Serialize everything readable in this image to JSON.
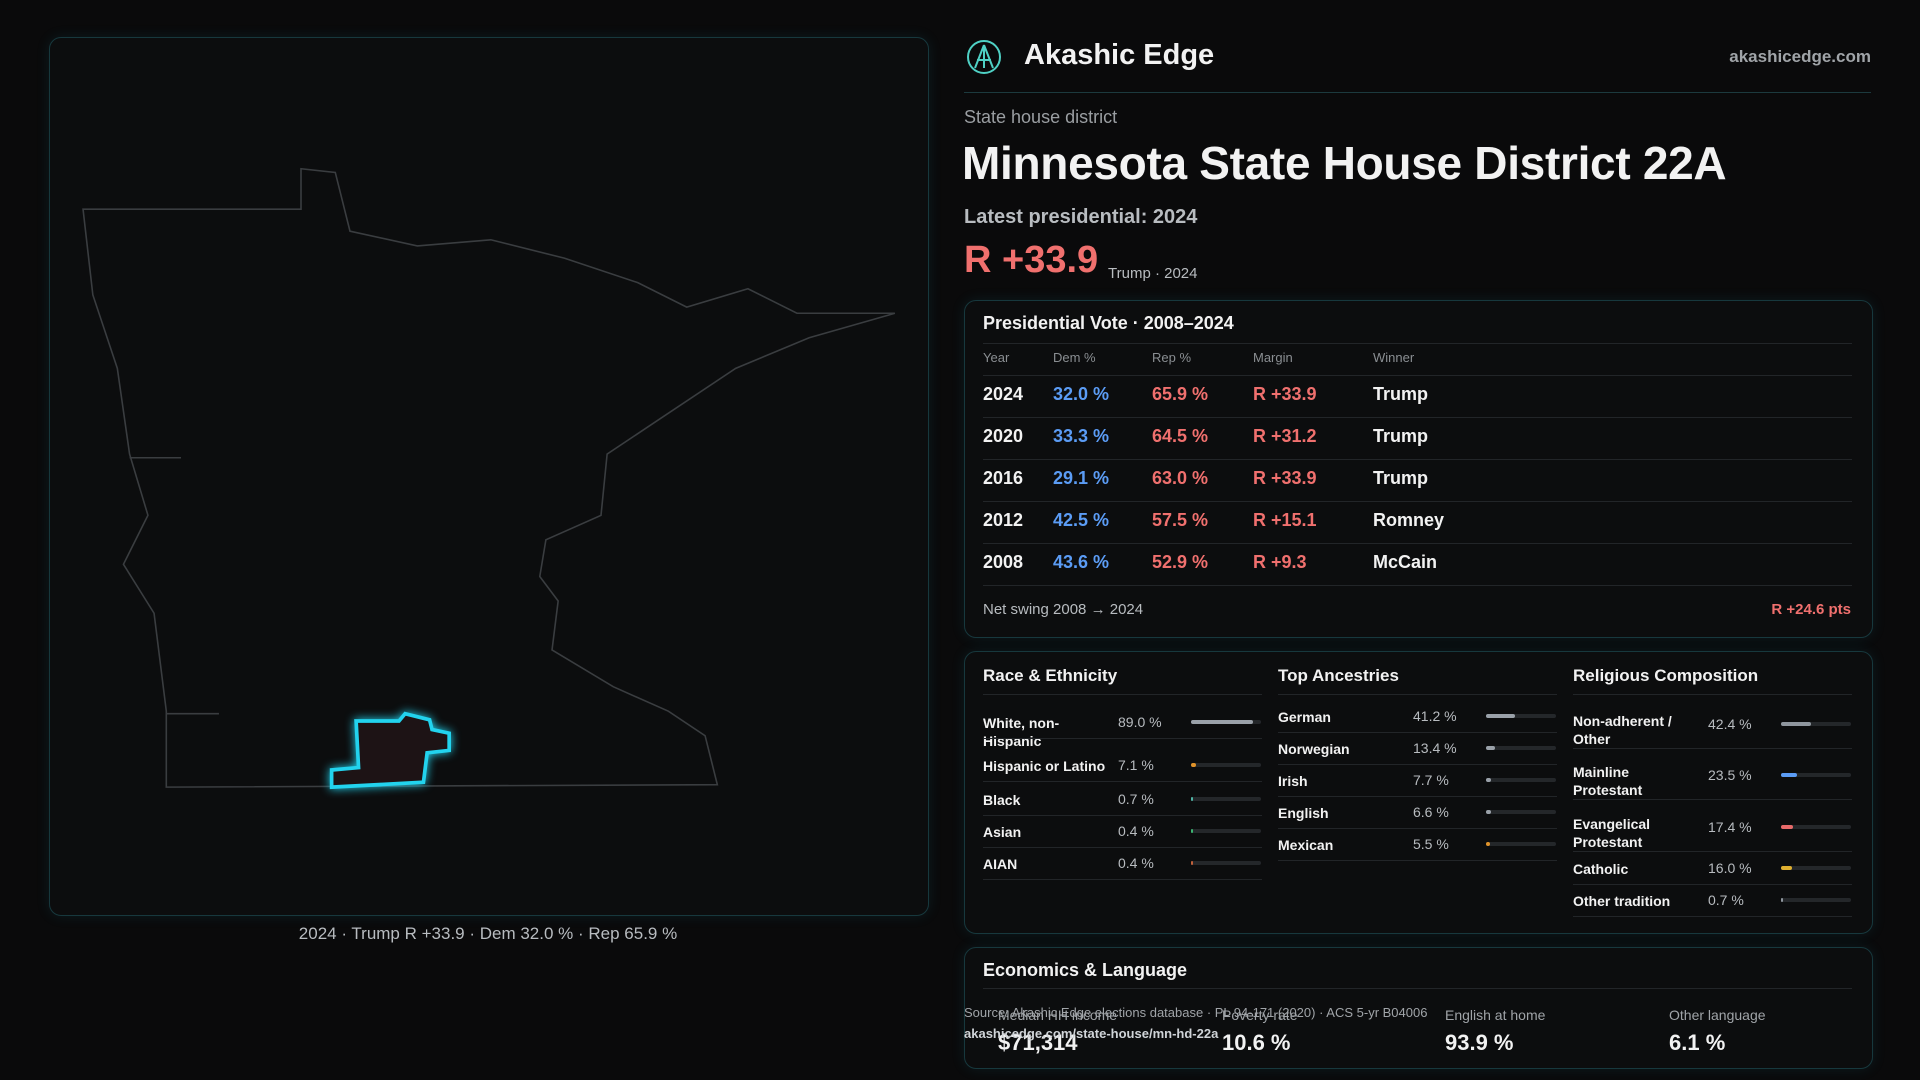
{
  "header": {
    "brand": "Akashic Edge",
    "url": "akashicedge.com"
  },
  "map": {
    "caption": "2024 · Trump R +33.9 · Dem 32.0 % · Rep 65.9 %"
  },
  "district": {
    "kicker": "State house district",
    "title": "Minnesota State House District 22A",
    "latest": "Latest presidential: 2024",
    "margin": "R +33.9",
    "margin_note": "Trump · 2024"
  },
  "presidential": {
    "title": "Presidential Vote · 2008–2024",
    "columns": [
      "Year",
      "Dem %",
      "Rep %",
      "Margin",
      "Winner"
    ],
    "rows": [
      [
        "2024",
        "32.0 %",
        "65.9 %",
        "R +33.9",
        "Trump"
      ],
      [
        "2020",
        "33.3 %",
        "64.5 %",
        "R +31.2",
        "Trump"
      ],
      [
        "2016",
        "29.1 %",
        "63.0 %",
        "R +33.9",
        "Trump"
      ],
      [
        "2012",
        "42.5 %",
        "57.5 %",
        "R +15.1",
        "Romney"
      ],
      [
        "2008",
        "43.6 %",
        "52.9 %",
        "R +9.3",
        "McCain"
      ]
    ],
    "swing_label": "Net swing 2008 → 2024",
    "swing_value": "R +24.6 pts"
  },
  "race": {
    "title": "Race & Ethnicity",
    "rows": [
      {
        "label": "White, non-Hispanic",
        "value": 89.0,
        "value_label": "89.0 %",
        "color": "#9aa1a9"
      },
      {
        "label": "Hispanic or Latino",
        "value": 7.1,
        "value_label": "7.1 %",
        "color": "#e0932a"
      },
      {
        "label": "Black",
        "value": 0.7,
        "value_label": "0.7 %",
        "color": "#4fb3a5"
      },
      {
        "label": "Asian",
        "value": 0.4,
        "value_label": "0.4 %",
        "color": "#3cb371"
      },
      {
        "label": "AIAN",
        "value": 0.4,
        "value_label": "0.4 %",
        "color": "#c0603a"
      }
    ]
  },
  "ancestry": {
    "title": "Top Ancestries",
    "rows": [
      {
        "label": "German",
        "value": 41.2,
        "value_label": "41.2 %",
        "color": "#9aa1a9"
      },
      {
        "label": "Norwegian",
        "value": 13.4,
        "value_label": "13.4 %",
        "color": "#9aa1a9"
      },
      {
        "label": "Irish",
        "value": 7.7,
        "value_label": "7.7 %",
        "color": "#9aa1a9"
      },
      {
        "label": "English",
        "value": 6.6,
        "value_label": "6.6 %",
        "color": "#9aa1a9"
      },
      {
        "label": "Mexican",
        "value": 5.5,
        "value_label": "5.5 %",
        "color": "#e0932a"
      }
    ]
  },
  "religion": {
    "title": "Religious Composition",
    "rows": [
      {
        "label": "Non-adherent / Other",
        "value": 42.4,
        "value_label": "42.4 %",
        "color": "#8f969e"
      },
      {
        "label": "Mainline Protestant",
        "value": 23.5,
        "value_label": "23.5 %",
        "color": "#5b9cf5"
      },
      {
        "label": "Evangelical Protestant",
        "value": 17.4,
        "value_label": "17.4 %",
        "color": "#e86a6a"
      },
      {
        "label": "Catholic",
        "value": 16.0,
        "value_label": "16.0 %",
        "color": "#e0b030"
      },
      {
        "label": "Other tradition",
        "value": 0.7,
        "value_label": "0.7 %",
        "color": "#8f969e"
      }
    ]
  },
  "economics": {
    "title": "Economics & Language",
    "items": [
      {
        "label": "Median HH income",
        "value": "$71,314"
      },
      {
        "label": "Poverty rate",
        "value": "10.6 %"
      },
      {
        "label": "English at home",
        "value": "93.9 %"
      },
      {
        "label": "Other language",
        "value": "6.1 %"
      }
    ]
  },
  "footer": {
    "source": "Source: Akashic Edge elections database · PL 94-171 (2020) · ACS 5-yr B04006",
    "link": "akashicedge.com/state-house/mn-hd-22a"
  }
}
